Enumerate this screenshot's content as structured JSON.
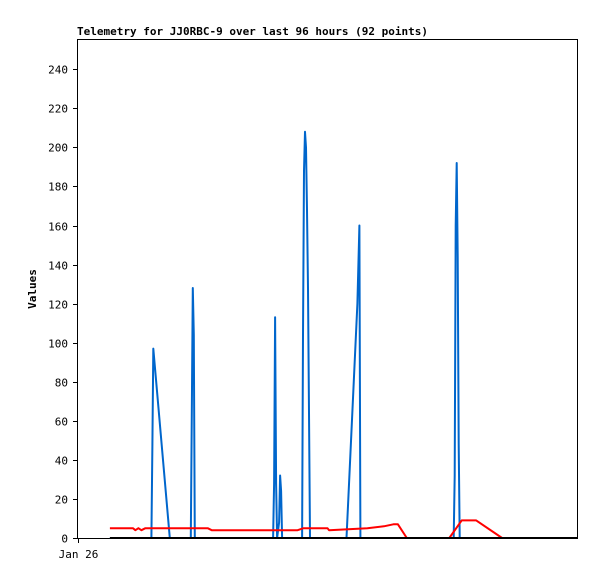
{
  "chart_data": {
    "type": "line",
    "title": "Telemetry for JJ0RBC-9 over last 96 hours (92 points)",
    "xlabel": "",
    "ylabel": "Values",
    "ylim": [
      0,
      255
    ],
    "xlim": [
      0,
      1
    ],
    "yticks": [
      0,
      20,
      40,
      60,
      80,
      100,
      120,
      140,
      160,
      180,
      200,
      220,
      240
    ],
    "xtick_labels": [
      {
        "x": 0.0,
        "label": "Jan 26"
      }
    ],
    "grid": false,
    "legend": "none",
    "background": "#ffffff",
    "series": [
      {
        "color": "#0066cc",
        "points": [
          [
            0.064,
            0
          ],
          [
            0.147,
            0
          ],
          [
            0.149,
            48
          ],
          [
            0.151,
            97
          ],
          [
            0.184,
            0
          ],
          [
            0.226,
            0
          ],
          [
            0.228,
            64
          ],
          [
            0.23,
            128
          ],
          [
            0.232,
            104
          ],
          [
            0.234,
            0
          ],
          [
            0.391,
            0
          ],
          [
            0.393,
            28
          ],
          [
            0.395,
            113
          ],
          [
            0.397,
            28
          ],
          [
            0.399,
            0
          ],
          [
            0.403,
            8
          ],
          [
            0.405,
            32
          ],
          [
            0.407,
            24
          ],
          [
            0.409,
            0
          ],
          [
            0.449,
            0
          ],
          [
            0.451,
            104
          ],
          [
            0.453,
            188
          ],
          [
            0.455,
            208
          ],
          [
            0.457,
            200
          ],
          [
            0.459,
            168
          ],
          [
            0.461,
            128
          ],
          [
            0.463,
            64
          ],
          [
            0.465,
            0
          ],
          [
            0.538,
            0
          ],
          [
            0.56,
            120
          ],
          [
            0.564,
            160
          ],
          [
            0.566,
            0
          ],
          [
            0.753,
            0
          ],
          [
            0.755,
            32
          ],
          [
            0.757,
            160
          ],
          [
            0.759,
            192
          ],
          [
            0.761,
            144
          ],
          [
            0.763,
            48
          ],
          [
            0.765,
            0
          ],
          [
            1.0,
            0
          ]
        ]
      },
      {
        "color": "#ff0000",
        "points": [
          [
            0.064,
            5
          ],
          [
            0.11,
            5
          ],
          [
            0.115,
            4
          ],
          [
            0.121,
            5
          ],
          [
            0.127,
            4
          ],
          [
            0.135,
            5
          ],
          [
            0.26,
            5
          ],
          [
            0.268,
            4
          ],
          [
            0.44,
            4
          ],
          [
            0.452,
            5
          ],
          [
            0.5,
            5
          ],
          [
            0.503,
            4
          ],
          [
            0.58,
            5
          ],
          [
            0.613,
            6
          ],
          [
            0.632,
            7
          ],
          [
            0.641,
            7
          ],
          [
            0.659,
            0
          ],
          [
            0.744,
            0
          ],
          [
            0.769,
            9
          ],
          [
            0.798,
            9
          ],
          [
            0.85,
            0
          ],
          [
            1.0,
            0
          ]
        ]
      },
      {
        "color": "#000000",
        "points": [
          [
            0.064,
            0
          ],
          [
            1.0,
            0
          ]
        ]
      }
    ]
  }
}
